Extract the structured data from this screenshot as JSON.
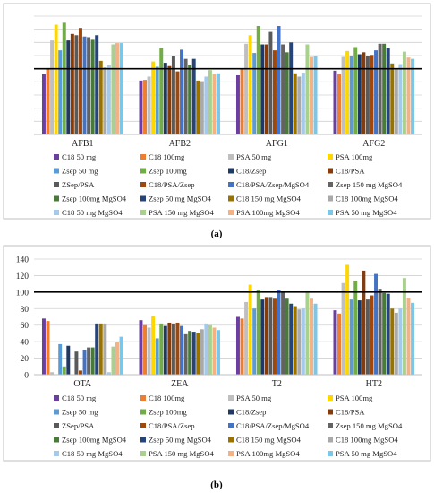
{
  "colors": [
    "#6a3fa0",
    "#ed7d31",
    "#bfbfbf",
    "#ffd700",
    "#5b9bd5",
    "#70ad47",
    "#203864",
    "#843c0c",
    "#5a5a5a",
    "#9e480e",
    "#4472c4",
    "#636363",
    "#4a7a3a",
    "#264478",
    "#997300",
    "#a9a9a9",
    "#a5c9ea",
    "#a9d18e",
    "#f4b183",
    "#7cc7e8"
  ],
  "chart_data": [
    {
      "type": "bar",
      "caption": "(a)",
      "categories": [
        "AFB1",
        "AFB2",
        "AFG1",
        "AFG2"
      ],
      "ylim": [
        0,
        180
      ],
      "yticks": [
        0,
        20,
        40,
        60,
        80,
        100,
        120,
        140,
        160,
        180
      ],
      "show_ytick_labels": false,
      "reference_line": 100,
      "grid": true,
      "legend_position": "bottom",
      "series": [
        {
          "name": "C18 50 mg",
          "values": [
            92,
            82,
            90,
            97
          ]
        },
        {
          "name": "C18 100mg",
          "values": [
            101,
            83,
            100,
            92
          ]
        },
        {
          "name": "PSA 50 mg",
          "values": [
            143,
            88,
            138,
            118
          ]
        },
        {
          "name": "PSA 100mg",
          "values": [
            167,
            111,
            151,
            127
          ]
        },
        {
          "name": "Zsep 50 mg",
          "values": [
            128,
            103,
            124,
            119
          ]
        },
        {
          "name": "Zsep 100mg",
          "values": [
            170,
            132,
            165,
            133
          ]
        },
        {
          "name": "C18/Zsep",
          "values": [
            143,
            109,
            137,
            122
          ]
        },
        {
          "name": "C18/PSA",
          "values": [
            153,
            104,
            137,
            125
          ]
        },
        {
          "name": "ZSep/PSA",
          "values": [
            151,
            119,
            156,
            120
          ]
        },
        {
          "name": "C18/PSA/Zsep",
          "values": [
            162,
            96,
            128,
            121
          ]
        },
        {
          "name": "C18/PSA/Zsep/MgSO4",
          "values": [
            149,
            129,
            165,
            128
          ]
        },
        {
          "name": "Zsep 150 mg MgSO4",
          "values": [
            148,
            115,
            137,
            138
          ]
        },
        {
          "name": "Zsep 100mg MgSO4",
          "values": [
            144,
            106,
            125,
            138
          ]
        },
        {
          "name": "Zsep 50 mg MgSO4",
          "values": [
            151,
            115,
            140,
            131
          ]
        },
        {
          "name": "C18 150 mg MgSO4",
          "values": [
            112,
            82,
            93,
            108
          ]
        },
        {
          "name": "C18 100mg MgSO4",
          "values": [
            102,
            81,
            88,
            99
          ]
        },
        {
          "name": "C18 50 mg MgSO4",
          "values": [
            105,
            88,
            94,
            107
          ]
        },
        {
          "name": "PSA 150 mg MgSO4",
          "values": [
            137,
            98,
            137,
            126
          ]
        },
        {
          "name": "PSA 100mg MgSO4",
          "values": [
            139,
            92,
            118,
            117
          ]
        },
        {
          "name": "PSA 50 mg MgSO4",
          "values": [
            139,
            93,
            119,
            115
          ]
        }
      ]
    },
    {
      "type": "bar",
      "caption": "(b)",
      "categories": [
        "OTA",
        "ZEA",
        "T2",
        "HT2"
      ],
      "ylim": [
        0,
        140
      ],
      "yticks": [
        0,
        20,
        40,
        60,
        80,
        100,
        120,
        140
      ],
      "show_ytick_labels": true,
      "reference_line": 100,
      "grid": true,
      "legend_position": "bottom",
      "series": [
        {
          "name": "C18 50 mg",
          "values": [
            68,
            66,
            70,
            78
          ]
        },
        {
          "name": "C18 100mg",
          "values": [
            65,
            60,
            68,
            74
          ]
        },
        {
          "name": "PSA 50 mg",
          "values": [
            3,
            57,
            88,
            111
          ]
        },
        {
          "name": "PSA 100mg",
          "values": [
            0,
            71,
            109,
            133
          ]
        },
        {
          "name": "Zsep 50 mg",
          "values": [
            37,
            44,
            80,
            91
          ]
        },
        {
          "name": "Zsep 100mg",
          "values": [
            10,
            62,
            103,
            114
          ]
        },
        {
          "name": "C18/Zsep",
          "values": [
            35,
            59,
            91,
            90
          ]
        },
        {
          "name": "C18/PSA",
          "values": [
            0,
            63,
            94,
            126
          ]
        },
        {
          "name": "ZSep/PSA",
          "values": [
            28,
            62,
            94,
            91
          ]
        },
        {
          "name": "C18/PSA/Zsep",
          "values": [
            5,
            63,
            92,
            96
          ]
        },
        {
          "name": "C18/PSA/Zsep/MgSO4",
          "values": [
            30,
            59,
            103,
            122
          ]
        },
        {
          "name": "Zsep 150 mg MgSO4",
          "values": [
            33,
            49,
            100,
            104
          ]
        },
        {
          "name": "Zsep 100mg MgSO4",
          "values": [
            33,
            53,
            92,
            99
          ]
        },
        {
          "name": "Zsep 50 mg MgSO4",
          "values": [
            62,
            52,
            86,
            98
          ]
        },
        {
          "name": "C18 150 mg MgSO4",
          "values": [
            62,
            51,
            83,
            80
          ]
        },
        {
          "name": "C18 100mg MgSO4",
          "values": [
            62,
            55,
            79,
            75
          ]
        },
        {
          "name": "C18 50 mg MgSO4",
          "values": [
            3,
            62,
            80,
            80
          ]
        },
        {
          "name": "PSA 150 mg MgSO4",
          "values": [
            34,
            60,
            101,
            117
          ]
        },
        {
          "name": "PSA 100mg MgSO4",
          "values": [
            39,
            57,
            92,
            93
          ]
        },
        {
          "name": "PSA 50 mg MgSO4",
          "values": [
            46,
            54,
            86,
            87
          ]
        }
      ]
    }
  ]
}
